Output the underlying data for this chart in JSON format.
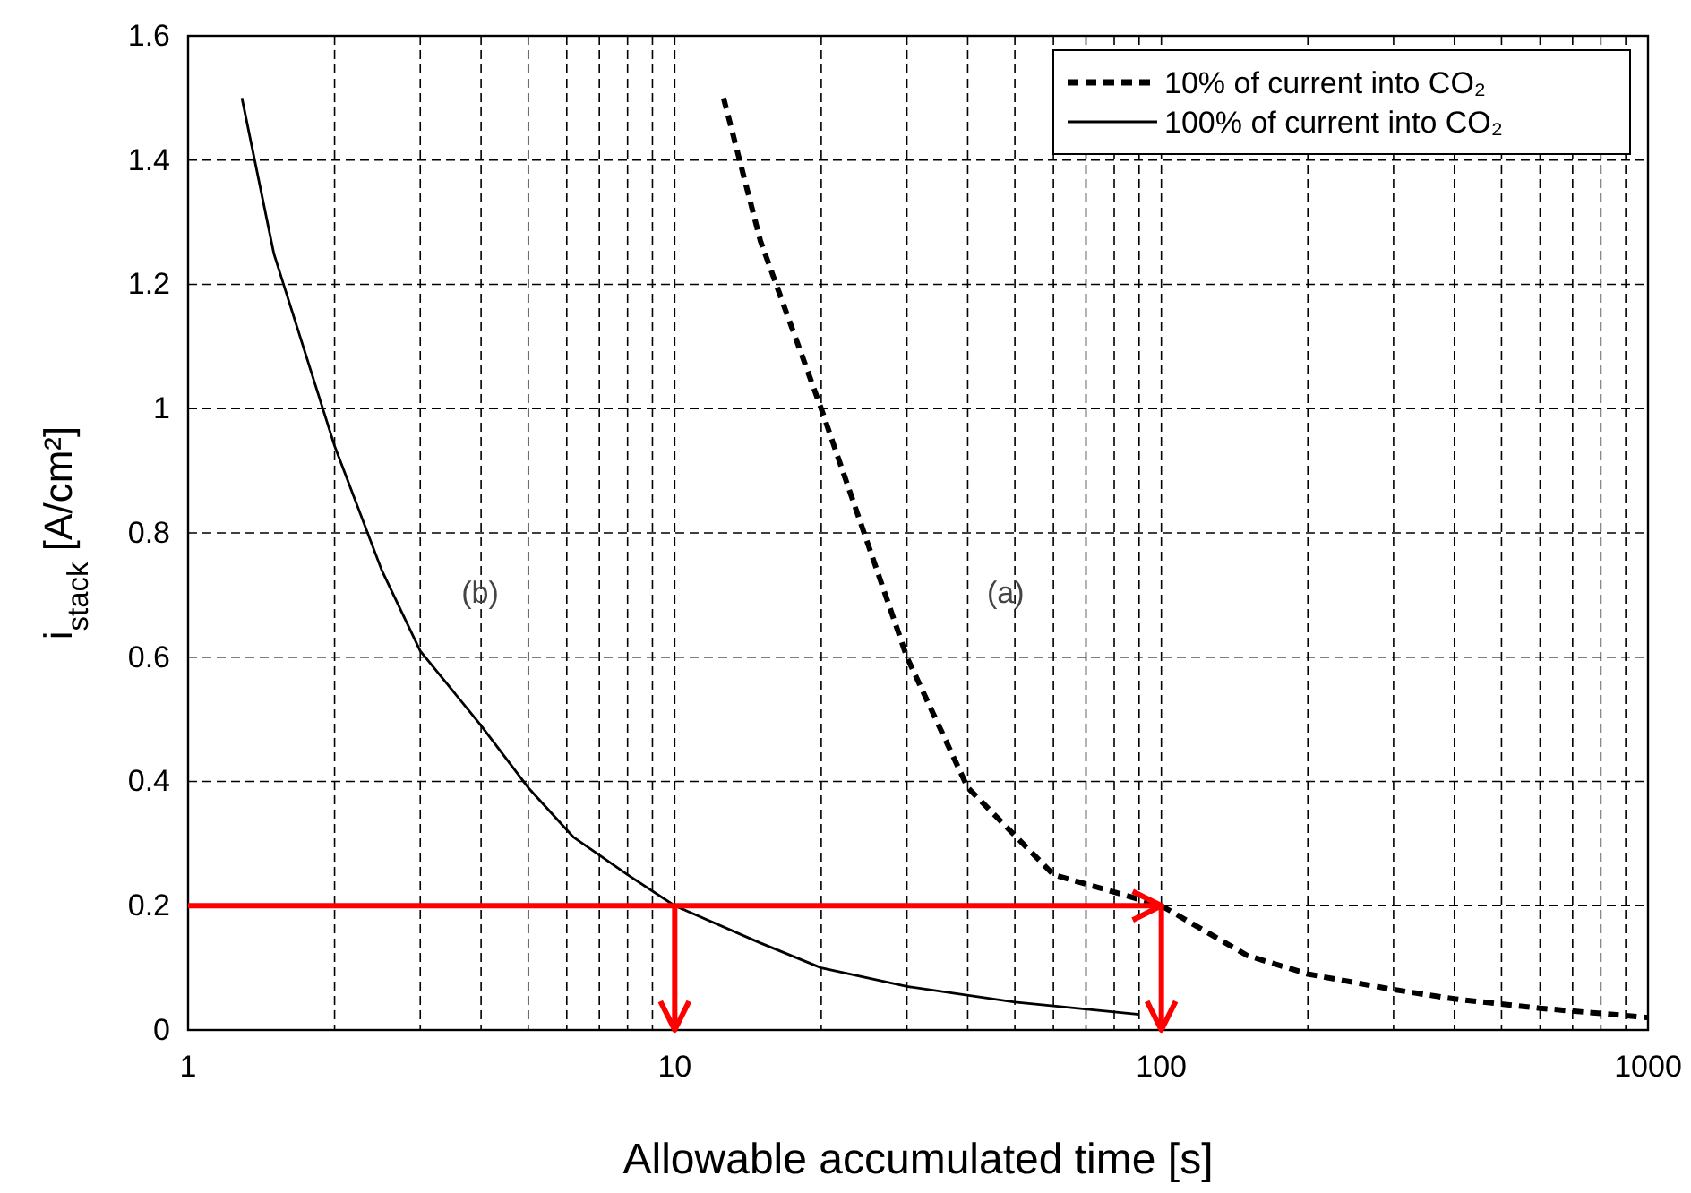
{
  "chart_data": {
    "type": "line",
    "xlabel": "Allowable accumulated time [s]",
    "ylabel": "i$_{stack}$ [A/cm²]",
    "log": "x",
    "grid": true,
    "legend": "top right",
    "marker": "none",
    "xlim": [
      1,
      1000
    ],
    "ylim": [
      0,
      1.6
    ],
    "xticks": [
      1,
      {
        "value": 2,
        "label": null
      },
      {
        "value": 3,
        "label": null
      },
      {
        "value": 4,
        "label": null
      },
      {
        "value": 5,
        "label": null
      },
      {
        "value": 6,
        "label": null
      },
      {
        "value": 7,
        "label": null
      },
      {
        "value": 8,
        "label": null
      },
      {
        "value": 9,
        "label": null
      },
      10,
      {
        "value": 20,
        "label": null
      },
      {
        "value": 30,
        "label": null
      },
      {
        "value": 40,
        "label": null
      },
      {
        "value": 50,
        "label": null
      },
      {
        "value": 60,
        "label": null
      },
      {
        "value": 70,
        "label": null
      },
      {
        "value": 80,
        "label": null
      },
      {
        "value": 90,
        "label": null
      },
      100,
      {
        "value": 200,
        "label": null
      },
      {
        "value": 300,
        "label": null
      },
      {
        "value": 400,
        "label": null
      },
      {
        "value": 500,
        "label": null
      },
      {
        "value": 600,
        "label": null
      },
      {
        "value": 700,
        "label": null
      },
      {
        "value": 800,
        "label": null
      },
      {
        "value": 900,
        "label": null
      },
      1000
    ],
    "yticks": [
      0,
      0.2,
      0.4,
      0.6,
      0.8,
      1,
      1.2,
      1.4,
      1.6
    ],
    "series": [
      {
        "name": "10% of current into CO₂",
        "color": "#000000",
        "line_style": "dashed",
        "x": [
          12.6,
          15,
          20,
          25,
          30,
          40,
          60,
          100,
          150,
          200,
          300,
          400,
          600,
          1000
        ],
        "values": [
          1.5,
          1.27,
          1.0,
          0.78,
          0.6,
          0.39,
          0.25,
          0.2,
          0.12,
          0.09,
          0.065,
          0.05,
          0.035,
          0.02
        ]
      },
      {
        "name": "100% of current into CO₂",
        "color": "#000000",
        "line_style": "solid",
        "x": [
          1.29,
          1.5,
          2,
          2.5,
          3,
          4,
          5,
          6.2,
          8,
          10,
          15,
          20,
          30,
          50,
          90
        ],
        "values": [
          1.5,
          1.25,
          0.94,
          0.74,
          0.61,
          0.49,
          0.39,
          0.31,
          0.25,
          0.2,
          0.14,
          0.1,
          0.07,
          0.045,
          0.025
        ]
      }
    ],
    "ref_lines": [
      {
        "axis": "y",
        "value": 0.2,
        "color": "#ff0000",
        "line_style": "solid"
      }
    ],
    "annotations": [
      "(a)",
      "(b)"
    ]
  }
}
